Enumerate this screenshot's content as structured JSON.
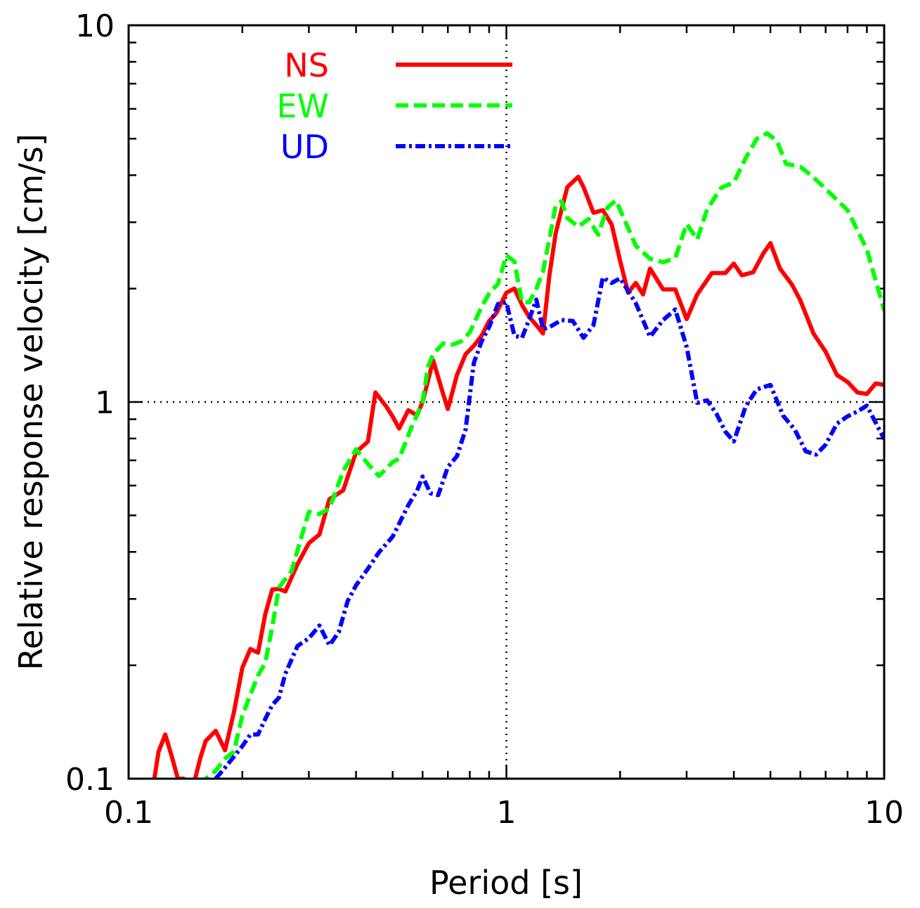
{
  "chart_data": {
    "type": "line",
    "xlabel": "Period [s]",
    "ylabel": "Relative response velocity [cm/s]",
    "x_scale": "log",
    "y_scale": "log",
    "xlim": [
      0.1,
      10
    ],
    "ylim": [
      0.1,
      10
    ],
    "x_ticks": [
      {
        "value": 0.1,
        "label": "0.1"
      },
      {
        "value": 1,
        "label": "1"
      },
      {
        "value": 10,
        "label": "10"
      }
    ],
    "y_ticks": [
      {
        "value": 0.1,
        "label": "0.1"
      },
      {
        "value": 1,
        "label": "1"
      },
      {
        "value": 10,
        "label": "10"
      }
    ],
    "grid_lines": {
      "x": [
        1
      ],
      "y": [
        1
      ]
    },
    "legend": "top-left",
    "series": [
      {
        "name": "NS",
        "color": "#ff0000",
        "style": "solid",
        "points": [
          [
            0.117,
            0.1
          ],
          [
            0.12,
            0.118
          ],
          [
            0.125,
            0.131
          ],
          [
            0.13,
            0.115
          ],
          [
            0.135,
            0.1
          ],
          [
            0.14,
            0.1
          ],
          [
            0.145,
            0.095
          ],
          [
            0.15,
            0.1
          ],
          [
            0.155,
            0.114
          ],
          [
            0.16,
            0.126
          ],
          [
            0.17,
            0.134
          ],
          [
            0.18,
            0.119
          ],
          [
            0.19,
            0.15
          ],
          [
            0.2,
            0.197
          ],
          [
            0.21,
            0.221
          ],
          [
            0.22,
            0.216
          ],
          [
            0.23,
            0.273
          ],
          [
            0.24,
            0.318
          ],
          [
            0.25,
            0.319
          ],
          [
            0.26,
            0.314
          ],
          [
            0.28,
            0.371
          ],
          [
            0.3,
            0.422
          ],
          [
            0.32,
            0.445
          ],
          [
            0.34,
            0.552
          ],
          [
            0.37,
            0.583
          ],
          [
            0.4,
            0.736
          ],
          [
            0.43,
            0.785
          ],
          [
            0.45,
            1.06
          ],
          [
            0.48,
            0.975
          ],
          [
            0.5,
            0.915
          ],
          [
            0.52,
            0.85
          ],
          [
            0.55,
            0.951
          ],
          [
            0.58,
            0.922
          ],
          [
            0.6,
            1.0
          ],
          [
            0.64,
            1.29
          ],
          [
            0.68,
            1.05
          ],
          [
            0.7,
            0.958
          ],
          [
            0.74,
            1.18
          ],
          [
            0.78,
            1.34
          ],
          [
            0.82,
            1.41
          ],
          [
            0.86,
            1.5
          ],
          [
            0.9,
            1.64
          ],
          [
            0.94,
            1.72
          ],
          [
            1.0,
            1.95
          ],
          [
            1.05,
            2.0
          ],
          [
            1.1,
            1.81
          ],
          [
            1.15,
            1.68
          ],
          [
            1.2,
            1.6
          ],
          [
            1.25,
            1.52
          ],
          [
            1.3,
            2.17
          ],
          [
            1.35,
            2.8
          ],
          [
            1.4,
            3.24
          ],
          [
            1.45,
            3.72
          ],
          [
            1.5,
            3.84
          ],
          [
            1.55,
            3.96
          ],
          [
            1.6,
            3.72
          ],
          [
            1.7,
            3.18
          ],
          [
            1.8,
            3.23
          ],
          [
            1.9,
            2.96
          ],
          [
            2.0,
            2.37
          ],
          [
            2.1,
            1.95
          ],
          [
            2.2,
            2.07
          ],
          [
            2.3,
            1.93
          ],
          [
            2.4,
            2.26
          ],
          [
            2.6,
            1.99
          ],
          [
            2.8,
            1.99
          ],
          [
            3.0,
            1.66
          ],
          [
            3.2,
            1.93
          ],
          [
            3.5,
            2.2
          ],
          [
            3.8,
            2.2
          ],
          [
            4.0,
            2.33
          ],
          [
            4.2,
            2.17
          ],
          [
            4.5,
            2.21
          ],
          [
            4.8,
            2.49
          ],
          [
            5.0,
            2.64
          ],
          [
            5.3,
            2.26
          ],
          [
            5.7,
            2.05
          ],
          [
            6.0,
            1.86
          ],
          [
            6.5,
            1.52
          ],
          [
            7.0,
            1.36
          ],
          [
            7.5,
            1.18
          ],
          [
            8.0,
            1.13
          ],
          [
            8.5,
            1.06
          ],
          [
            9.0,
            1.05
          ],
          [
            9.5,
            1.12
          ],
          [
            10.0,
            1.11
          ]
        ]
      },
      {
        "name": "EW",
        "color": "#00ff00",
        "style": "dashed",
        "points": [
          [
            0.14,
            0.1
          ],
          [
            0.15,
            0.095
          ],
          [
            0.16,
            0.1
          ],
          [
            0.17,
            0.105
          ],
          [
            0.18,
            0.113
          ],
          [
            0.19,
            0.118
          ],
          [
            0.2,
            0.147
          ],
          [
            0.21,
            0.167
          ],
          [
            0.22,
            0.188
          ],
          [
            0.23,
            0.203
          ],
          [
            0.24,
            0.253
          ],
          [
            0.25,
            0.322
          ],
          [
            0.27,
            0.356
          ],
          [
            0.28,
            0.404
          ],
          [
            0.3,
            0.511
          ],
          [
            0.32,
            0.504
          ],
          [
            0.34,
            0.522
          ],
          [
            0.37,
            0.656
          ],
          [
            0.4,
            0.749
          ],
          [
            0.43,
            0.685
          ],
          [
            0.46,
            0.636
          ],
          [
            0.5,
            0.693
          ],
          [
            0.52,
            0.707
          ],
          [
            0.56,
            0.855
          ],
          [
            0.6,
            1.0
          ],
          [
            0.62,
            1.24
          ],
          [
            0.64,
            1.34
          ],
          [
            0.68,
            1.43
          ],
          [
            0.72,
            1.42
          ],
          [
            0.76,
            1.45
          ],
          [
            0.8,
            1.53
          ],
          [
            0.86,
            1.79
          ],
          [
            0.9,
            1.94
          ],
          [
            0.95,
            2.06
          ],
          [
            1.0,
            2.45
          ],
          [
            1.05,
            2.36
          ],
          [
            1.1,
            1.84
          ],
          [
            1.15,
            1.84
          ],
          [
            1.2,
            2.0
          ],
          [
            1.25,
            2.22
          ],
          [
            1.3,
            2.71
          ],
          [
            1.35,
            3.32
          ],
          [
            1.4,
            3.41
          ],
          [
            1.45,
            3.08
          ],
          [
            1.55,
            2.92
          ],
          [
            1.65,
            3.06
          ],
          [
            1.75,
            2.78
          ],
          [
            1.85,
            3.28
          ],
          [
            1.95,
            3.43
          ],
          [
            2.05,
            3.06
          ],
          [
            2.2,
            2.6
          ],
          [
            2.4,
            2.4
          ],
          [
            2.6,
            2.35
          ],
          [
            2.8,
            2.41
          ],
          [
            3.0,
            2.97
          ],
          [
            3.2,
            2.7
          ],
          [
            3.4,
            3.25
          ],
          [
            3.7,
            3.7
          ],
          [
            4.0,
            3.83
          ],
          [
            4.3,
            4.44
          ],
          [
            4.6,
            5.0
          ],
          [
            4.9,
            5.17
          ],
          [
            5.2,
            4.93
          ],
          [
            5.5,
            4.29
          ],
          [
            6.0,
            4.21
          ],
          [
            6.5,
            3.95
          ],
          [
            7.0,
            3.68
          ],
          [
            8.0,
            3.23
          ],
          [
            9.0,
            2.54
          ],
          [
            10.0,
            1.75
          ]
        ]
      },
      {
        "name": "UD",
        "color": "#0000ff",
        "style": "dash-dot",
        "points": [
          [
            0.17,
            0.1
          ],
          [
            0.18,
            0.107
          ],
          [
            0.2,
            0.122
          ],
          [
            0.21,
            0.131
          ],
          [
            0.22,
            0.131
          ],
          [
            0.23,
            0.144
          ],
          [
            0.24,
            0.157
          ],
          [
            0.25,
            0.164
          ],
          [
            0.26,
            0.19
          ],
          [
            0.28,
            0.225
          ],
          [
            0.3,
            0.236
          ],
          [
            0.32,
            0.255
          ],
          [
            0.34,
            0.226
          ],
          [
            0.36,
            0.245
          ],
          [
            0.38,
            0.296
          ],
          [
            0.4,
            0.326
          ],
          [
            0.43,
            0.361
          ],
          [
            0.46,
            0.399
          ],
          [
            0.5,
            0.439
          ],
          [
            0.55,
            0.532
          ],
          [
            0.58,
            0.581
          ],
          [
            0.6,
            0.634
          ],
          [
            0.63,
            0.572
          ],
          [
            0.66,
            0.566
          ],
          [
            0.7,
            0.672
          ],
          [
            0.74,
            0.718
          ],
          [
            0.78,
            0.846
          ],
          [
            0.82,
            1.27
          ],
          [
            0.86,
            1.45
          ],
          [
            0.9,
            1.58
          ],
          [
            0.95,
            1.82
          ],
          [
            1.0,
            1.84
          ],
          [
            1.05,
            1.5
          ],
          [
            1.1,
            1.48
          ],
          [
            1.15,
            1.66
          ],
          [
            1.2,
            1.87
          ],
          [
            1.25,
            1.56
          ],
          [
            1.3,
            1.58
          ],
          [
            1.4,
            1.65
          ],
          [
            1.5,
            1.64
          ],
          [
            1.6,
            1.48
          ],
          [
            1.7,
            1.6
          ],
          [
            1.8,
            2.14
          ],
          [
            1.9,
            2.07
          ],
          [
            2.0,
            2.13
          ],
          [
            2.2,
            1.83
          ],
          [
            2.4,
            1.49
          ],
          [
            2.6,
            1.65
          ],
          [
            2.8,
            1.76
          ],
          [
            3.0,
            1.4
          ],
          [
            3.2,
            0.995
          ],
          [
            3.4,
            1.01
          ],
          [
            3.6,
            0.93
          ],
          [
            3.8,
            0.834
          ],
          [
            4.0,
            0.786
          ],
          [
            4.3,
            0.974
          ],
          [
            4.6,
            1.08
          ],
          [
            5.0,
            1.11
          ],
          [
            5.4,
            0.92
          ],
          [
            5.8,
            0.845
          ],
          [
            6.2,
            0.74
          ],
          [
            6.6,
            0.725
          ],
          [
            7.0,
            0.77
          ],
          [
            7.5,
            0.876
          ],
          [
            8.0,
            0.916
          ],
          [
            8.5,
            0.944
          ],
          [
            9.0,
            0.978
          ],
          [
            10.0,
            0.797
          ]
        ]
      }
    ]
  }
}
